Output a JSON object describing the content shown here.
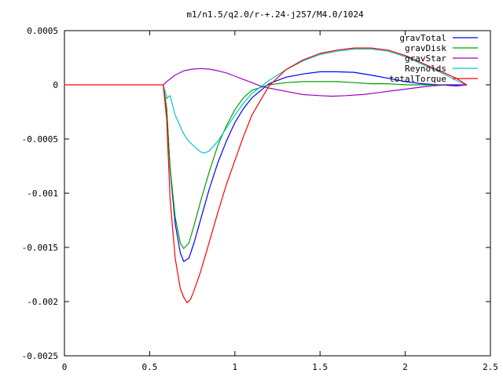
{
  "chart_data": {
    "type": "line",
    "title": "m1/n1.5/q2.0/r-+.24-j257/M4.0/1024",
    "xlabel": "",
    "ylabel": "",
    "xlim": [
      0,
      2.5
    ],
    "ylim": [
      -0.0025,
      0.0005
    ],
    "grid": false,
    "legend_position": "top-right",
    "x_ticks": [
      {
        "value": 0,
        "label": "0"
      },
      {
        "value": 0.5,
        "label": "0.5"
      },
      {
        "value": 1,
        "label": "1"
      },
      {
        "value": 1.5,
        "label": "1.5"
      },
      {
        "value": 2,
        "label": "2"
      },
      {
        "value": 2.5,
        "label": "2.5"
      }
    ],
    "y_ticks": [
      {
        "value": 0.0005,
        "label": "0.0005"
      },
      {
        "value": 0,
        "label": "0"
      },
      {
        "value": -0.0005,
        "label": "-0.0005"
      },
      {
        "value": -0.001,
        "label": "-0.001"
      },
      {
        "value": -0.0015,
        "label": "-0.0015"
      },
      {
        "value": -0.002,
        "label": "-0.002"
      },
      {
        "value": -0.0025,
        "label": "-0.0025"
      }
    ],
    "series": [
      {
        "name": "gravTotal",
        "color": "#0000ff",
        "points": [
          [
            0.58,
            0
          ],
          [
            0.6,
            -0.00022
          ],
          [
            0.62,
            -0.00078
          ],
          [
            0.65,
            -0.00128
          ],
          [
            0.68,
            -0.00155
          ],
          [
            0.7,
            -0.00163
          ],
          [
            0.73,
            -0.0016
          ],
          [
            0.76,
            -0.00146
          ],
          [
            0.8,
            -0.00124
          ],
          [
            0.85,
            -0.00096
          ],
          [
            0.9,
            -0.00072
          ],
          [
            0.95,
            -0.00052
          ],
          [
            1.0,
            -0.00035
          ],
          [
            1.05,
            -0.00022
          ],
          [
            1.1,
            -0.00012
          ],
          [
            1.2,
            1e-05
          ],
          [
            1.3,
            7e-05
          ],
          [
            1.4,
            0.0001
          ],
          [
            1.5,
            0.00012
          ],
          [
            1.6,
            0.00012
          ],
          [
            1.7,
            0.000115
          ],
          [
            1.8,
            9e-05
          ],
          [
            1.9,
            6e-05
          ],
          [
            2.0,
            3e-05
          ],
          [
            2.1,
            1e-05
          ],
          [
            2.2,
            0.0
          ],
          [
            2.3,
            -1e-05
          ],
          [
            2.36,
            0
          ]
        ]
      },
      {
        "name": "gravDisk",
        "color": "#00a000",
        "points": [
          [
            0.58,
            0
          ],
          [
            0.6,
            -0.00022
          ],
          [
            0.62,
            -0.00076
          ],
          [
            0.65,
            -0.00122
          ],
          [
            0.68,
            -0.00146
          ],
          [
            0.7,
            -0.00151
          ],
          [
            0.73,
            -0.00146
          ],
          [
            0.76,
            -0.0013
          ],
          [
            0.8,
            -0.00107
          ],
          [
            0.85,
            -0.0008
          ],
          [
            0.9,
            -0.00056
          ],
          [
            0.95,
            -0.00038
          ],
          [
            1.0,
            -0.00023
          ],
          [
            1.05,
            -0.00012
          ],
          [
            1.1,
            -5e-05
          ],
          [
            1.2,
            0.0
          ],
          [
            1.3,
            2e-05
          ],
          [
            1.4,
            3e-05
          ],
          [
            1.5,
            3e-05
          ],
          [
            1.6,
            3e-05
          ],
          [
            1.7,
            2e-05
          ],
          [
            1.8,
            1e-05
          ],
          [
            1.9,
            1e-05
          ],
          [
            2.0,
            0.0
          ],
          [
            2.2,
            0.0
          ],
          [
            2.36,
            0
          ]
        ]
      },
      {
        "name": "gravStar",
        "color": "#a000c0",
        "points": [
          [
            0.58,
            0
          ],
          [
            0.6,
            3e-05
          ],
          [
            0.65,
            9e-05
          ],
          [
            0.7,
            0.00013
          ],
          [
            0.75,
            0.000145
          ],
          [
            0.8,
            0.00015
          ],
          [
            0.85,
            0.000145
          ],
          [
            0.9,
            0.00013
          ],
          [
            0.95,
            0.00011
          ],
          [
            1.0,
            8e-05
          ],
          [
            1.05,
            5e-05
          ],
          [
            1.1,
            2e-05
          ],
          [
            1.15,
            -1e-05
          ],
          [
            1.2,
            -3e-05
          ],
          [
            1.3,
            -6e-05
          ],
          [
            1.4,
            -9e-05
          ],
          [
            1.5,
            -0.0001
          ],
          [
            1.57,
            -0.000105
          ],
          [
            1.65,
            -0.0001
          ],
          [
            1.75,
            -9e-05
          ],
          [
            1.85,
            -7e-05
          ],
          [
            1.95,
            -5e-05
          ],
          [
            2.05,
            -3e-05
          ],
          [
            2.15,
            -1e-05
          ],
          [
            2.25,
            0.0
          ],
          [
            2.36,
            0
          ]
        ]
      },
      {
        "name": "Reynolds",
        "color": "#00c8c8",
        "points": [
          [
            0.58,
            0
          ],
          [
            0.595,
            -8e-05
          ],
          [
            0.6,
            -0.00013
          ],
          [
            0.61,
            -0.00011
          ],
          [
            0.62,
            -0.0001
          ],
          [
            0.63,
            -0.00016
          ],
          [
            0.65,
            -0.00028
          ],
          [
            0.67,
            -0.00035
          ],
          [
            0.69,
            -0.00042
          ],
          [
            0.71,
            -0.00048
          ],
          [
            0.73,
            -0.00052
          ],
          [
            0.75,
            -0.00055
          ],
          [
            0.77,
            -0.00058
          ],
          [
            0.8,
            -0.00062
          ],
          [
            0.82,
            -0.00063
          ],
          [
            0.85,
            -0.00061
          ],
          [
            0.9,
            -0.00052
          ],
          [
            0.95,
            -0.0004
          ],
          [
            1.0,
            -0.00028
          ],
          [
            1.05,
            -0.00017
          ],
          [
            1.1,
            -8e-05
          ],
          [
            1.2,
            4e-05
          ],
          [
            1.3,
            0.00014
          ],
          [
            1.4,
            0.00022
          ],
          [
            1.5,
            0.00028
          ],
          [
            1.6,
            0.00031
          ],
          [
            1.7,
            0.00033
          ],
          [
            1.8,
            0.00033
          ],
          [
            1.9,
            0.00031
          ],
          [
            2.0,
            0.00026
          ],
          [
            2.1,
            0.00019
          ],
          [
            2.2,
            0.00012
          ],
          [
            2.3,
            4e-05
          ],
          [
            2.36,
            0
          ]
        ]
      },
      {
        "name": "totalTorque",
        "color": "#ff0000",
        "points": [
          [
            0,
            0
          ],
          [
            0.58,
            0
          ],
          [
            0.6,
            -0.00032
          ],
          [
            0.62,
            -0.00105
          ],
          [
            0.65,
            -0.0016
          ],
          [
            0.68,
            -0.00188
          ],
          [
            0.7,
            -0.00196
          ],
          [
            0.72,
            -0.00201
          ],
          [
            0.74,
            -0.00198
          ],
          [
            0.76,
            -0.0019
          ],
          [
            0.8,
            -0.00172
          ],
          [
            0.85,
            -0.00145
          ],
          [
            0.9,
            -0.00118
          ],
          [
            0.95,
            -0.00092
          ],
          [
            1.0,
            -0.0007
          ],
          [
            1.05,
            -0.00048
          ],
          [
            1.1,
            -0.00028
          ],
          [
            1.2,
            -1e-05
          ],
          [
            1.3,
            0.00014
          ],
          [
            1.4,
            0.00023
          ],
          [
            1.5,
            0.00029
          ],
          [
            1.6,
            0.00032
          ],
          [
            1.7,
            0.00034
          ],
          [
            1.8,
            0.00034
          ],
          [
            1.9,
            0.00032
          ],
          [
            2.0,
            0.00027
          ],
          [
            2.1,
            0.0002
          ],
          [
            2.2,
            0.00013
          ],
          [
            2.3,
            6e-05
          ],
          [
            2.36,
            0
          ]
        ]
      }
    ]
  }
}
